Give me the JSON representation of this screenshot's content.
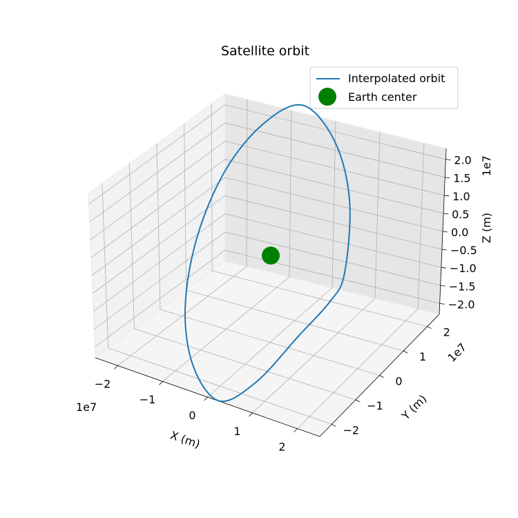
{
  "chart_data": {
    "type": "line",
    "projection": "3d",
    "title": "Satellite orbit",
    "xlabel": "X (m)",
    "ylabel": "Y (m)",
    "zlabel": "Z (m)",
    "offsets": {
      "x": "1e7",
      "y": "1e7",
      "z": "1e7"
    },
    "xlim": [
      -25000000.0,
      25000000.0
    ],
    "ylim": [
      -25000000.0,
      25000000.0
    ],
    "zlim": [
      -23000000.0,
      23000000.0
    ],
    "x_ticks": [
      "−2",
      "−1",
      "0",
      "1",
      "2"
    ],
    "y_ticks": [
      "−2",
      "−1",
      "0",
      "1",
      "2"
    ],
    "z_ticks": [
      "−2.0",
      "−1.5",
      "−1.0",
      "−0.5",
      "0.0",
      "0.5",
      "1.0",
      "1.5",
      "2.0"
    ],
    "grid": true,
    "legend_position": "top-right",
    "colors": {
      "orbit": "#1f77b4",
      "earth": "#008000"
    },
    "series": [
      {
        "name": "Interpolated orbit",
        "style": "line",
        "x": [
          22000000.0,
          19300000.0,
          11800000.0,
          1200000.0,
          -9500000.0,
          -17800000.0,
          -22000000.0,
          -21300000.0,
          -15800000.0,
          -7000000.0,
          3000000.0,
          12500000.0,
          19300000.0,
          22000000.0
        ],
        "y": [
          0,
          7500000.0,
          13000000.0,
          15000000.0,
          13000000.0,
          7500000.0,
          0,
          -7500000.0,
          -13000000.0,
          -15000000.0,
          -13000000.0,
          -7500000.0,
          -3000000.0,
          0
        ],
        "z": [
          0,
          9000000.0,
          16000000.0,
          20000000.0,
          16000000.0,
          9000000.0,
          0,
          -9000000.0,
          -16000000.0,
          -20000000.0,
          -16000000.0,
          -9000000.0,
          -4000000.0,
          0
        ]
      },
      {
        "name": "Earth center",
        "style": "marker",
        "x": [
          0
        ],
        "y": [
          0
        ],
        "z": [
          0
        ]
      }
    ]
  }
}
